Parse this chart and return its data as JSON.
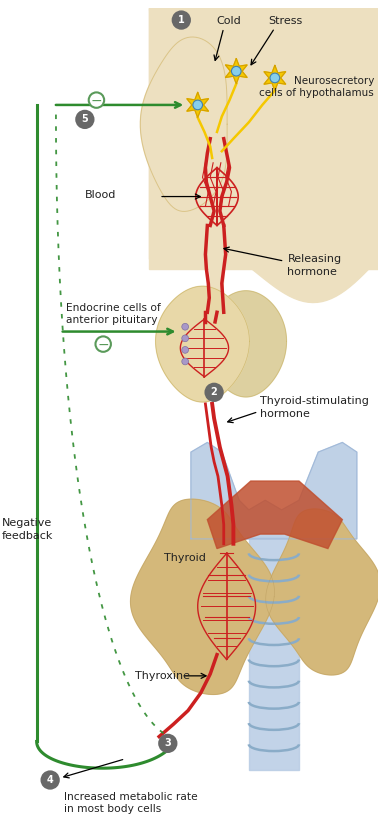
{
  "bg_color": "#ffffff",
  "hyp_color": "#ede0c0",
  "pit_color": "#e8d8a8",
  "thy_color": "#d4b87a",
  "thy_color2": "#c8a860",
  "blue_color": "#b8cce4",
  "blue_color2": "#a0b8d8",
  "nerve_color": "#f5c800",
  "nerve_edge": "#d4a000",
  "bv_color": "#cc2020",
  "fc": "#2e8b2e",
  "muscle_color": "#c05030",
  "dot_color": "#9090c0",
  "circle_bg": "#686868",
  "minus_edge": "#5a9a5a",
  "labels": {
    "cold": "Cold",
    "stress": "Stress",
    "neurosec": "Neurosecretory\ncells of hypothalamus",
    "blood": "Blood",
    "releasing": "Releasing\nhormone",
    "endocrine": "Endocrine cells of\nanterior pituitary",
    "tsh": "Thyroid-stimulating\nhormone",
    "thyroid": "Thyroid",
    "thyroxine": "Thyroxine",
    "neg_feedback": "Negative\nfeedback",
    "metabolic": "Increased metabolic rate\nin most body cells"
  }
}
